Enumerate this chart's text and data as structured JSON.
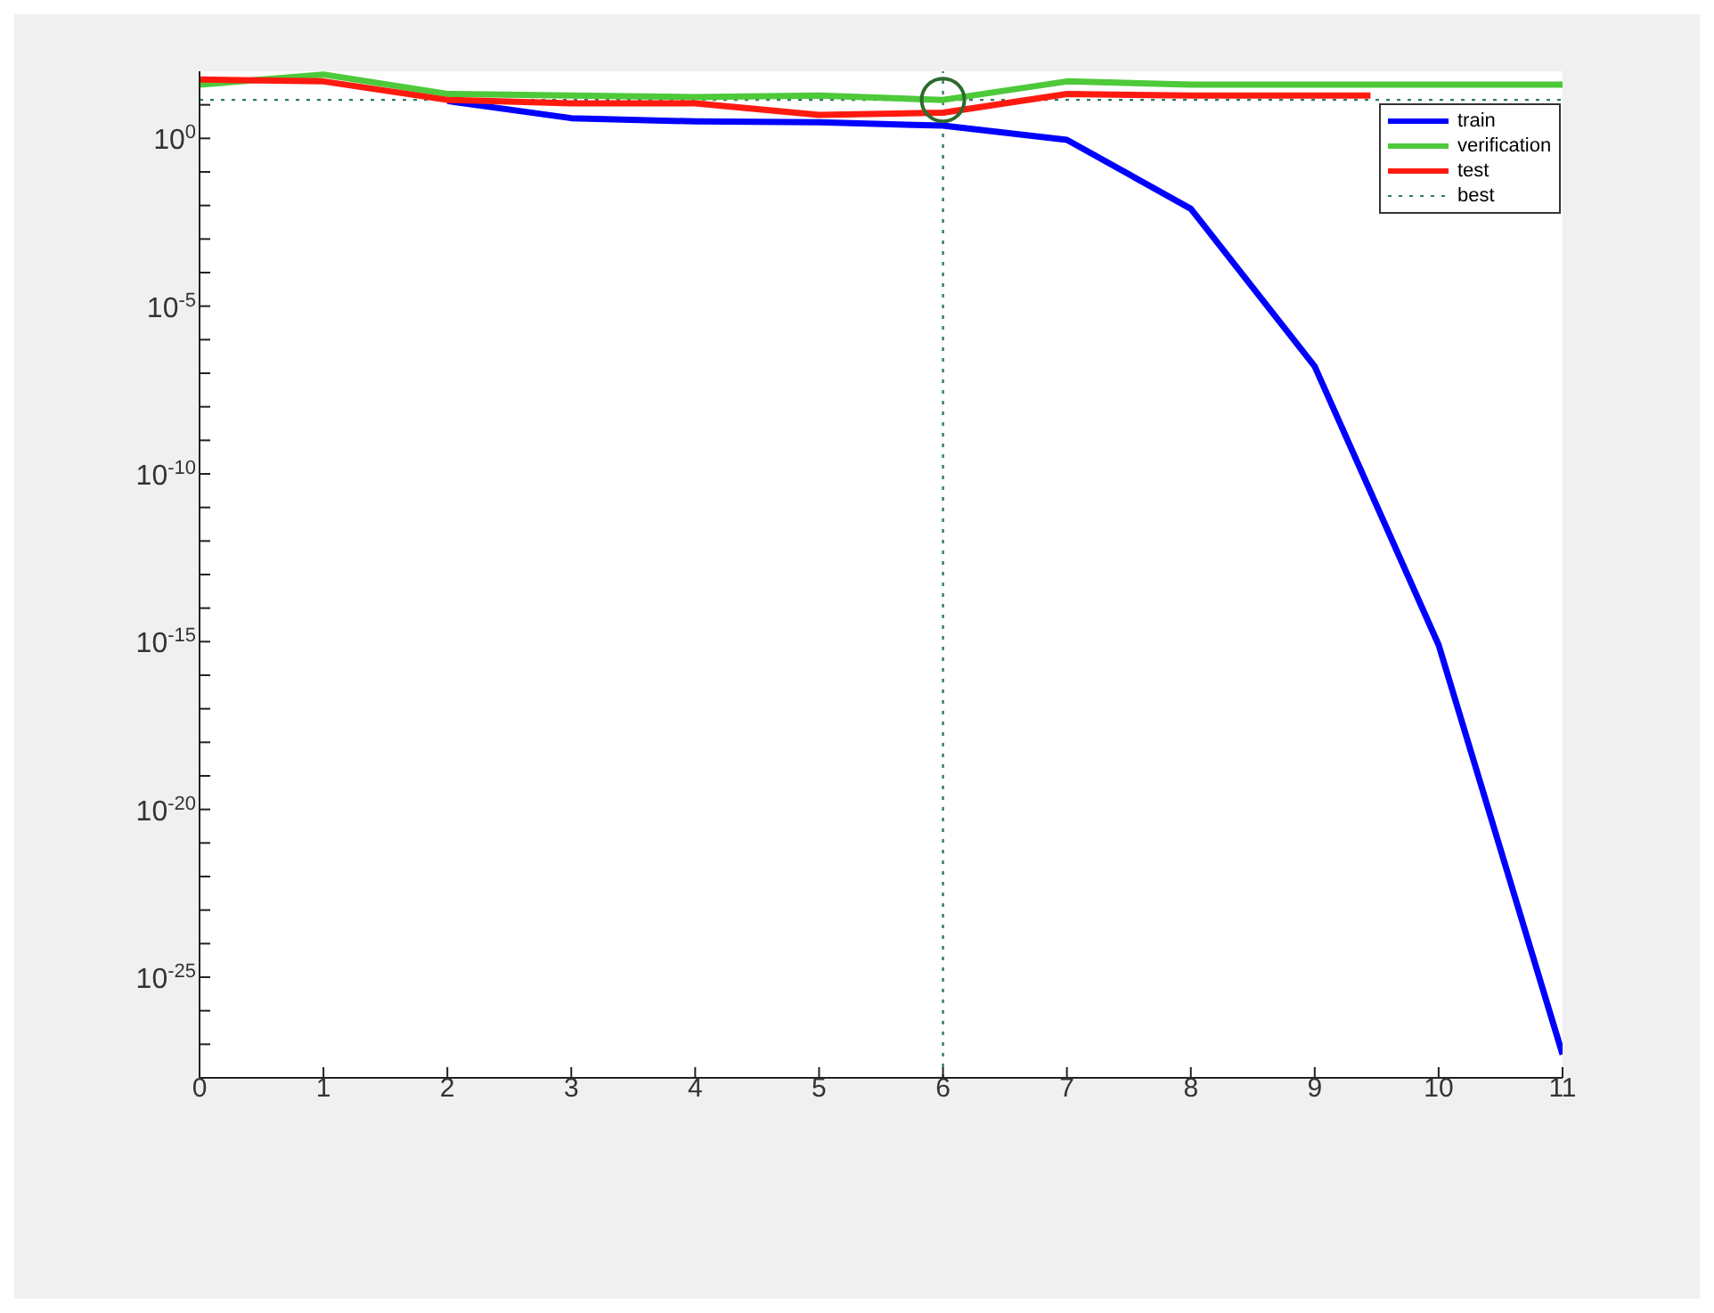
{
  "chart_data": {
    "type": "line",
    "log": "y",
    "grid": false,
    "legend": "top right",
    "marker": "none",
    "line_style": "solid",
    "x": [
      0,
      1,
      2,
      3,
      4,
      5,
      6,
      7,
      8,
      9,
      10,
      11
    ],
    "xlim": [
      0,
      11
    ],
    "xticks": [
      0,
      1,
      2,
      3,
      4,
      5,
      6,
      7,
      8,
      9,
      10,
      11
    ],
    "ylim": [
      1e-28,
      100
    ],
    "yticks": [
      {
        "value": 1e-27,
        "label": null
      },
      {
        "value": 1e-26,
        "label": null
      },
      {
        "value": 1e-25,
        "label": "10$^{-25}$"
      },
      {
        "value": 1e-24,
        "label": null
      },
      {
        "value": 1e-23,
        "label": null
      },
      {
        "value": 1e-22,
        "label": null
      },
      {
        "value": 1e-21,
        "label": null
      },
      {
        "value": 1e-20,
        "label": "10$^{-20}$"
      },
      {
        "value": 1e-19,
        "label": null
      },
      {
        "value": 1e-18,
        "label": null
      },
      {
        "value": 1e-17,
        "label": null
      },
      {
        "value": 1e-16,
        "label": null
      },
      {
        "value": 1e-15,
        "label": "10$^{-15}$"
      },
      {
        "value": 1e-14,
        "label": null
      },
      {
        "value": 1e-13,
        "label": null
      },
      {
        "value": 1e-12,
        "label": null
      },
      {
        "value": 1e-11,
        "label": null
      },
      {
        "value": 1e-10,
        "label": "10$^{-10}$"
      },
      {
        "value": 1e-09,
        "label": null
      },
      {
        "value": 1e-08,
        "label": null
      },
      {
        "value": 1e-07,
        "label": null
      },
      {
        "value": 1e-06,
        "label": null
      },
      {
        "value": 1e-05,
        "label": "10$^{-5}$"
      },
      {
        "value": 0.0001,
        "label": null
      },
      {
        "value": 0.001,
        "label": null
      },
      {
        "value": 0.01,
        "label": null
      },
      {
        "value": 0.1,
        "label": null
      },
      {
        "value": 1,
        "label": "10$^{0}$"
      },
      {
        "value": 10,
        "label": null
      }
    ],
    "series": [
      {
        "name": "train",
        "color": "#0000ff",
        "values": [
          null,
          null,
          13,
          4,
          3.2,
          3,
          2.4,
          0.9,
          0.008,
          1.6e-07,
          8e-16,
          5e-28
        ]
      },
      {
        "name": "verification",
        "color": "#4dc93a",
        "values": [
          40,
          80,
          21,
          19,
          17,
          19,
          14,
          50,
          40,
          40,
          40,
          40
        ]
      },
      {
        "name": "test",
        "color": "#ff1a10",
        "x": [
          0,
          1,
          2,
          3,
          4,
          5,
          6,
          7,
          8,
          9,
          9.45
        ],
        "values": [
          57,
          50,
          14,
          11,
          11,
          5,
          5.8,
          21,
          19,
          19,
          19
        ]
      },
      {
        "type": "scatter",
        "color": "#2e6b2e",
        "marker": "circle",
        "x": [
          6
        ],
        "values": [
          14
        ]
      }
    ],
    "ref_lines": [
      {
        "axis": "y",
        "value": 14,
        "label": "best",
        "color": "#2e7d5b",
        "line_style": "dotted"
      },
      {
        "axis": "x",
        "value": 6,
        "color": "#2e7d5b",
        "line_style": "dotted"
      }
    ]
  }
}
